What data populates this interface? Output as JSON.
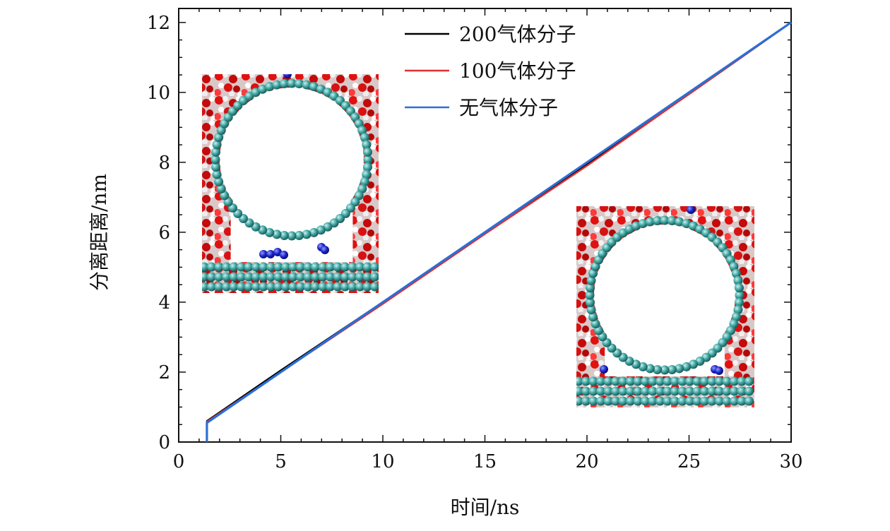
{
  "chart_data": {
    "type": "line",
    "title": "",
    "xlabel": "时间/ns",
    "ylabel": "分离距离/nm",
    "xlim": [
      0,
      30
    ],
    "ylim": [
      0,
      12.4
    ],
    "xticks": [
      0,
      5,
      10,
      15,
      20,
      25,
      30
    ],
    "yticks": [
      0,
      2,
      4,
      6,
      8,
      10,
      12
    ],
    "grid": false,
    "legend_position": "top-center",
    "series": [
      {
        "name": "200气体分子",
        "color": "#000000",
        "points": [
          [
            1.38,
            0
          ],
          [
            1.38,
            0.6
          ],
          [
            5,
            2.05
          ],
          [
            10,
            4.0
          ],
          [
            15,
            6.0
          ],
          [
            20,
            7.95
          ],
          [
            25,
            9.95
          ],
          [
            30,
            12.0
          ]
        ]
      },
      {
        "name": "100气体分子",
        "color": "#e03030",
        "points": [
          [
            1.38,
            0
          ],
          [
            1.38,
            0.58
          ],
          [
            5,
            2.0
          ],
          [
            10,
            3.95
          ],
          [
            15,
            5.95
          ],
          [
            20,
            7.9
          ],
          [
            25,
            9.95
          ],
          [
            30,
            12.0
          ]
        ]
      },
      {
        "name": "无气体分子",
        "color": "#2a6fd6",
        "points": [
          [
            1.38,
            0
          ],
          [
            1.38,
            0.55
          ],
          [
            5,
            2.0
          ],
          [
            10,
            4.0
          ],
          [
            15,
            6.0
          ],
          [
            20,
            8.0
          ],
          [
            25,
            10.0
          ],
          [
            30,
            12.0
          ]
        ]
      }
    ],
    "insets": [
      {
        "name": "inset-with-gas",
        "description_icon": "nanotube-on-graphene-gas-molecules-image"
      },
      {
        "name": "inset-no-gas",
        "description_icon": "nanotube-on-graphene-image"
      }
    ]
  }
}
